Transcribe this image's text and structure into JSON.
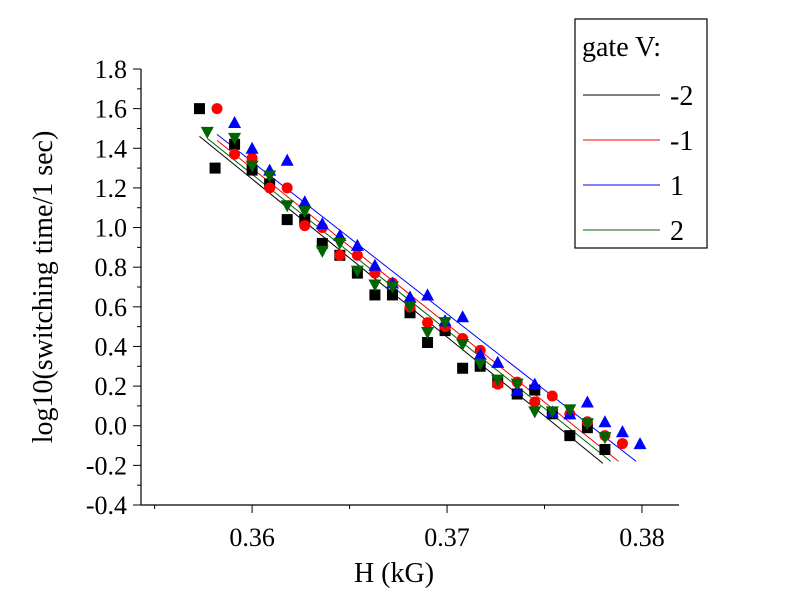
{
  "chart_data": {
    "type": "scatter",
    "xlabel": "H (kG)",
    "ylabel": "log10(switching time/1 sec)",
    "xlim": [
      0.3543,
      0.3819
    ],
    "ylim": [
      -0.4,
      1.8
    ],
    "x_ticks": [
      0.36,
      0.37,
      0.38
    ],
    "x_tick_labels": [
      "0.36",
      "0.37",
      "0.38"
    ],
    "y_ticks": [
      -0.4,
      -0.2,
      0.0,
      0.2,
      0.4,
      0.6,
      0.8,
      1.0,
      1.2,
      1.4,
      1.6,
      1.8
    ],
    "y_tick_labels": [
      "-0.4",
      "-0.2",
      "0.0",
      "0.2",
      "0.4",
      "0.6",
      "0.8",
      "1.0",
      "1.2",
      "1.4",
      "1.6",
      "1.8"
    ],
    "legend": {
      "title": "gate V:",
      "position": "top-right"
    },
    "grid": false,
    "series": [
      {
        "name": "-2",
        "color": "#000000",
        "marker": "square",
        "x": [
          0.3573,
          0.3581,
          0.3591,
          0.36,
          0.3609,
          0.3618,
          0.3627,
          0.3636,
          0.3645,
          0.3654,
          0.3663,
          0.3672,
          0.3681,
          0.369,
          0.3699,
          0.3708,
          0.3717,
          0.3726,
          0.3736,
          0.3745,
          0.3754,
          0.3763,
          0.3772,
          0.3781
        ],
        "y": [
          1.6,
          1.3,
          1.42,
          1.29,
          1.22,
          1.04,
          1.04,
          0.92,
          0.86,
          0.77,
          0.66,
          0.66,
          0.57,
          0.42,
          0.48,
          0.29,
          0.3,
          0.22,
          0.16,
          0.18,
          0.06,
          -0.05,
          -0.01,
          -0.12
        ],
        "fit": {
          "x": [
            0.3573,
            0.378
          ],
          "y": [
            1.46,
            -0.19
          ]
        }
      },
      {
        "name": "-1",
        "color": "#ff0000",
        "marker": "circle",
        "x": [
          0.3582,
          0.3591,
          0.36,
          0.3609,
          0.3618,
          0.3627,
          0.3636,
          0.3645,
          0.3654,
          0.3663,
          0.3672,
          0.3681,
          0.369,
          0.3699,
          0.3708,
          0.3717,
          0.3726,
          0.3736,
          0.3745,
          0.3754,
          0.3763,
          0.3772,
          0.3781,
          0.379
        ],
        "y": [
          1.6,
          1.37,
          1.35,
          1.2,
          1.2,
          1.01,
          1.0,
          0.86,
          0.86,
          0.77,
          0.72,
          0.6,
          0.52,
          0.5,
          0.44,
          0.38,
          0.21,
          0.22,
          0.12,
          0.15,
          0.06,
          0.02,
          -0.05,
          -0.09
        ],
        "fit": {
          "x": [
            0.3582,
            0.3788
          ],
          "y": [
            1.44,
            -0.18
          ]
        }
      },
      {
        "name": "1",
        "color": "#0000ff",
        "marker": "triangle-up",
        "x": [
          0.3591,
          0.36,
          0.3609,
          0.3618,
          0.3627,
          0.3636,
          0.3645,
          0.3654,
          0.3663,
          0.3672,
          0.3681,
          0.369,
          0.3699,
          0.3708,
          0.3717,
          0.3726,
          0.3736,
          0.3745,
          0.3754,
          0.3763,
          0.3772,
          0.3781,
          0.379,
          0.3799
        ],
        "y": [
          1.53,
          1.4,
          1.29,
          1.34,
          1.13,
          1.02,
          0.96,
          0.91,
          0.81,
          0.72,
          0.65,
          0.66,
          0.53,
          0.55,
          0.36,
          0.32,
          0.18,
          0.21,
          0.07,
          0.06,
          0.12,
          0.02,
          -0.03,
          -0.09
        ],
        "fit": {
          "x": [
            0.3582,
            0.3797
          ],
          "y": [
            1.47,
            -0.18
          ]
        }
      },
      {
        "name": "2",
        "color": "#006400",
        "marker": "triangle-down",
        "x": [
          0.3577,
          0.3591,
          0.36,
          0.3609,
          0.3618,
          0.3627,
          0.3636,
          0.3645,
          0.3654,
          0.3663,
          0.3672,
          0.3681,
          0.369,
          0.3699,
          0.3708,
          0.3717,
          0.3726,
          0.3736,
          0.3745,
          0.3754,
          0.3763,
          0.3772,
          0.3781
        ],
        "y": [
          1.48,
          1.45,
          1.31,
          1.26,
          1.11,
          1.08,
          0.88,
          0.92,
          0.78,
          0.71,
          0.7,
          0.6,
          0.47,
          0.52,
          0.41,
          0.31,
          0.23,
          0.21,
          0.07,
          0.07,
          0.08,
          0.01,
          -0.06
        ],
        "fit": {
          "x": [
            0.3577,
            0.3784
          ],
          "y": [
            1.45,
            -0.18
          ]
        }
      }
    ]
  }
}
